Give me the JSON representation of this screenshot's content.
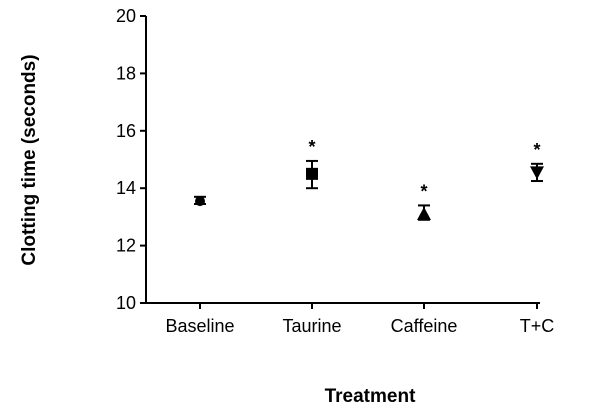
{
  "chart_data": {
    "type": "scatter",
    "title": "",
    "xlabel": "Treatment",
    "ylabel": "Clotting time (seconds)",
    "ylim": [
      10,
      20
    ],
    "yticks": [
      "10",
      "12",
      "14",
      "16",
      "18",
      "20"
    ],
    "grid": false,
    "legend": "none",
    "categories": [
      "Baseline",
      "Taurine",
      "Caffeine",
      "T+C"
    ],
    "series": [
      {
        "values": [
          13.55,
          14.5,
          13.1,
          14.55
        ],
        "error_low": [
          13.45,
          14.0,
          12.9,
          14.25
        ],
        "error_high": [
          13.7,
          14.95,
          13.4,
          14.85
        ],
        "markers": [
          "circle",
          "square",
          "triangle-up",
          "triangle-down"
        ],
        "significance": [
          "",
          "*",
          "*",
          "*"
        ]
      }
    ],
    "colors": {
      "marker": "#000000",
      "axis": "#000000"
    }
  }
}
